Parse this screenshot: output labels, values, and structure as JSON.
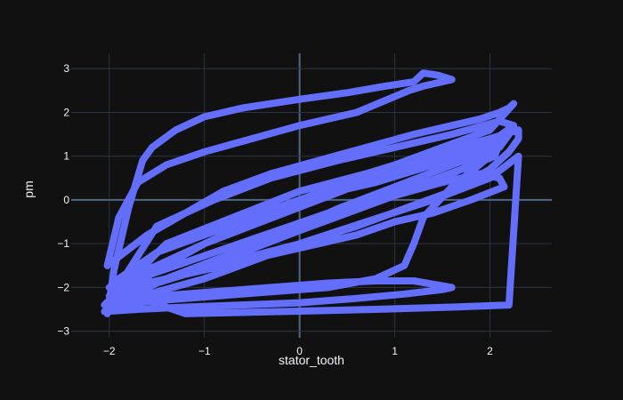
{
  "chart_data": {
    "type": "line",
    "title": "",
    "xlabel": "stator_tooth",
    "ylabel": "pm",
    "xlim": [
      -2.4,
      2.65
    ],
    "ylim": [
      -3.15,
      3.35
    ],
    "x_ticks": [
      -2,
      -1,
      0,
      1,
      2
    ],
    "x_tick_labels": [
      "−2",
      "−1",
      "0",
      "1",
      "2"
    ],
    "y_ticks": [
      -3,
      -2,
      -1,
      0,
      1,
      2,
      3
    ],
    "y_tick_labels": [
      "−3",
      "−2",
      "−1",
      "0",
      "1",
      "2",
      "3"
    ],
    "grid": true,
    "legend": "none",
    "colors": {
      "background": "#111111",
      "grid": "#283442",
      "zeroline": "#506784",
      "series": "#636efa",
      "text": "#f2f5fa"
    },
    "series": [
      {
        "name": "",
        "x": [
          -2.02,
          -1.95,
          -1.8,
          -1.65,
          -1.55,
          -1.3,
          -1.0,
          -0.6,
          0.0,
          0.5,
          0.9,
          1.2,
          1.3,
          1.45,
          1.6,
          1.3,
          1.15,
          0.6,
          0.0,
          -0.5,
          -1.0,
          -1.4,
          -1.7,
          -1.9,
          -2.02,
          -1.6,
          -1.2,
          -0.8,
          -0.3,
          0.2,
          0.7,
          1.2,
          1.6,
          1.9,
          2.1,
          2.2,
          2.25,
          2.0,
          1.5,
          1.0,
          0.5,
          0.0,
          -0.5,
          -1.0,
          -1.5,
          -1.9,
          -2.0,
          -1.5,
          -1.0,
          -0.5,
          0.0,
          0.5,
          1.0,
          1.5,
          2.0,
          2.3,
          2.3,
          2.2,
          2.0,
          1.6,
          1.1,
          0.6,
          0.0,
          -0.5,
          -1.0,
          -1.5,
          -1.9,
          -2.02,
          -1.5,
          -1.0,
          -0.5,
          0.0,
          0.5,
          1.0,
          1.5,
          1.9,
          2.1,
          2.15,
          1.8,
          1.4,
          1.0,
          0.6,
          0.2,
          -0.2,
          -0.6,
          -1.0,
          -1.4,
          -1.8,
          -2.0,
          -1.7,
          -1.3,
          -0.9,
          -0.5,
          -0.1,
          0.3,
          0.7,
          1.1,
          1.5,
          1.8,
          2.0,
          1.6,
          1.3,
          1.2,
          1.1,
          0.8,
          0.3,
          -0.3,
          -0.9,
          -1.5,
          -2.0,
          -1.5,
          -0.9,
          -0.3,
          0.3,
          0.8,
          1.2,
          1.6,
          1.5,
          1.1,
          0.6,
          0.0,
          -0.6,
          -1.2,
          -1.7,
          -2.05,
          -1.5,
          -0.8,
          0.0,
          0.8,
          1.4,
          1.9,
          2.1,
          2.05,
          1.7,
          1.2,
          0.6,
          0.0,
          -0.6,
          -1.2,
          -1.8,
          -2.05,
          -1.4,
          -0.7,
          0.0,
          0.7,
          1.3,
          1.9,
          2.2,
          2.1,
          1.6,
          1.0,
          0.4,
          -0.2,
          -0.8,
          -1.4,
          -1.95,
          -2.0,
          -1.5,
          -0.9,
          -0.3,
          0.4,
          1.0,
          1.6,
          2.1,
          2.25,
          2.0,
          1.4,
          0.8,
          0.2,
          -0.4,
          -1.0,
          -1.6,
          -2.0,
          -1.2,
          -0.2,
          0.8,
          1.6,
          2.2,
          2.3,
          2.0,
          1.4,
          0.7,
          0.0,
          -0.7,
          -1.4,
          -1.9
        ],
        "y": [
          -2.6,
          -1.6,
          -0.2,
          0.9,
          1.2,
          1.6,
          1.9,
          2.1,
          2.3,
          2.45,
          2.6,
          2.7,
          2.9,
          2.85,
          2.75,
          2.6,
          2.5,
          2.0,
          1.7,
          1.4,
          1.1,
          0.8,
          0.4,
          -0.4,
          -1.5,
          -0.8,
          -0.3,
          0.2,
          0.6,
          0.9,
          1.2,
          1.5,
          1.7,
          1.85,
          2.0,
          2.1,
          2.2,
          1.6,
          1.2,
          0.8,
          0.4,
          0.0,
          -0.4,
          -0.8,
          -1.2,
          -1.8,
          -2.4,
          -1.6,
          -1.0,
          -0.5,
          0.0,
          0.4,
          0.8,
          1.1,
          1.4,
          1.6,
          1.4,
          1.1,
          0.7,
          0.2,
          -0.2,
          -0.6,
          -1.0,
          -1.4,
          -1.8,
          -2.1,
          -2.4,
          -2.5,
          -1.9,
          -1.5,
          -1.1,
          -0.7,
          -0.3,
          0.1,
          0.4,
          0.6,
          0.5,
          0.3,
          0.0,
          -0.3,
          -0.5,
          -0.8,
          -1.0,
          -1.2,
          -1.4,
          -1.6,
          -1.8,
          -2.0,
          -2.2,
          -1.8,
          -1.5,
          -1.2,
          -0.9,
          -0.6,
          -0.3,
          0.0,
          0.2,
          0.5,
          0.8,
          1.0,
          0.3,
          -0.4,
          -1.0,
          -1.5,
          -1.8,
          -2.0,
          -2.1,
          -2.2,
          -2.3,
          -2.4,
          -2.2,
          -2.1,
          -2.0,
          -1.9,
          -1.85,
          -1.85,
          -2.0,
          -2.05,
          -2.15,
          -2.25,
          -2.35,
          -2.4,
          -2.45,
          -2.5,
          -2.55,
          -1.2,
          -0.6,
          0.0,
          0.4,
          0.8,
          1.1,
          1.3,
          1.0,
          0.7,
          0.3,
          -0.2,
          -0.7,
          -1.2,
          -1.7,
          -2.1,
          -2.4,
          -1.0,
          -0.4,
          0.2,
          0.6,
          1.0,
          1.3,
          1.5,
          1.2,
          0.8,
          0.3,
          -0.2,
          -0.8,
          -1.3,
          -1.8,
          -2.2,
          -2.3,
          -0.6,
          0.0,
          0.5,
          0.9,
          1.2,
          1.5,
          1.8,
          1.7,
          1.3,
          0.9,
          0.5,
          0.0,
          -0.5,
          -1.0,
          -1.6,
          -2.0,
          -2.6,
          -2.55,
          -2.5,
          -2.45,
          -2.4,
          1.0,
          0.5,
          0.0,
          -0.5,
          -1.0,
          -1.4,
          -1.8,
          -2.2
        ]
      }
    ]
  }
}
